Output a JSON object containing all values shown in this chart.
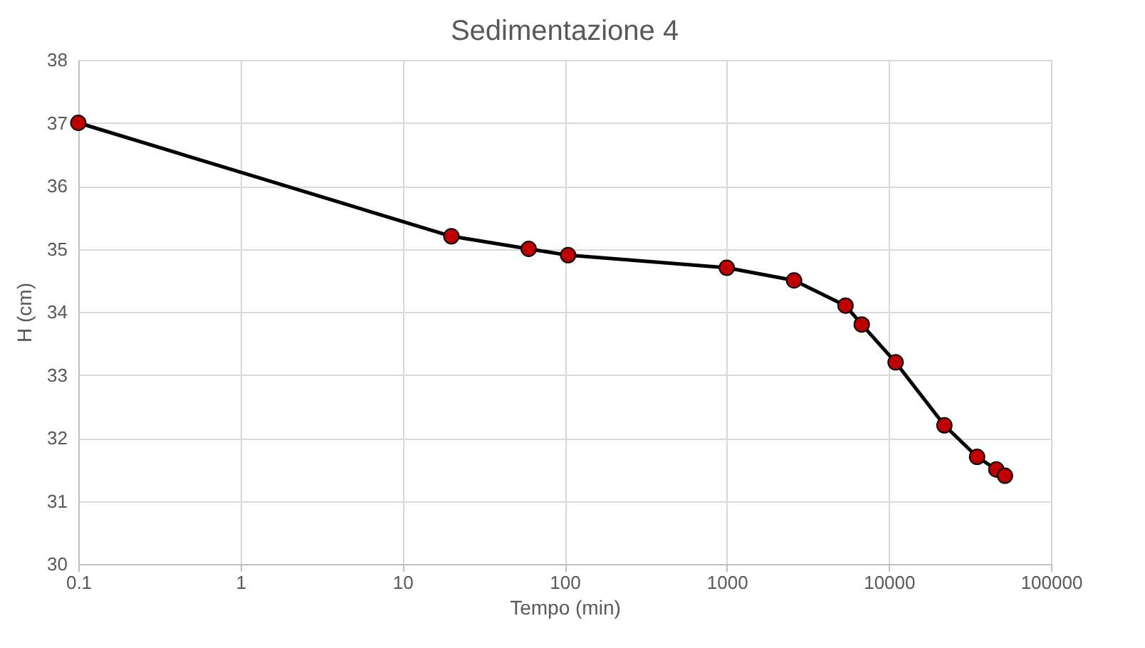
{
  "chart_data": {
    "type": "line",
    "title": "Sedimentazione 4",
    "xlabel": "Tempo (min)",
    "ylabel": "H (cm)",
    "x": [
      0.1,
      20,
      60,
      105,
      1000,
      2600,
      5400,
      6800,
      11000,
      22000,
      35000,
      46000,
      52000
    ],
    "series": [
      {
        "color": "#c00000",
        "values": [
          37.0,
          35.2,
          35.0,
          34.9,
          34.7,
          34.5,
          34.1,
          33.8,
          33.2,
          32.2,
          31.7,
          31.5,
          31.4
        ]
      }
    ],
    "log": "x",
    "xlim": [
      0.1,
      100000
    ],
    "xticks": [
      0.1,
      1,
      10,
      100,
      1000,
      10000,
      100000
    ],
    "ylim": [
      30,
      38
    ],
    "yticks": [
      30,
      31,
      32,
      33,
      34,
      35,
      36,
      37,
      38
    ],
    "grid": true,
    "marker": "circle",
    "line_style": "solid"
  }
}
